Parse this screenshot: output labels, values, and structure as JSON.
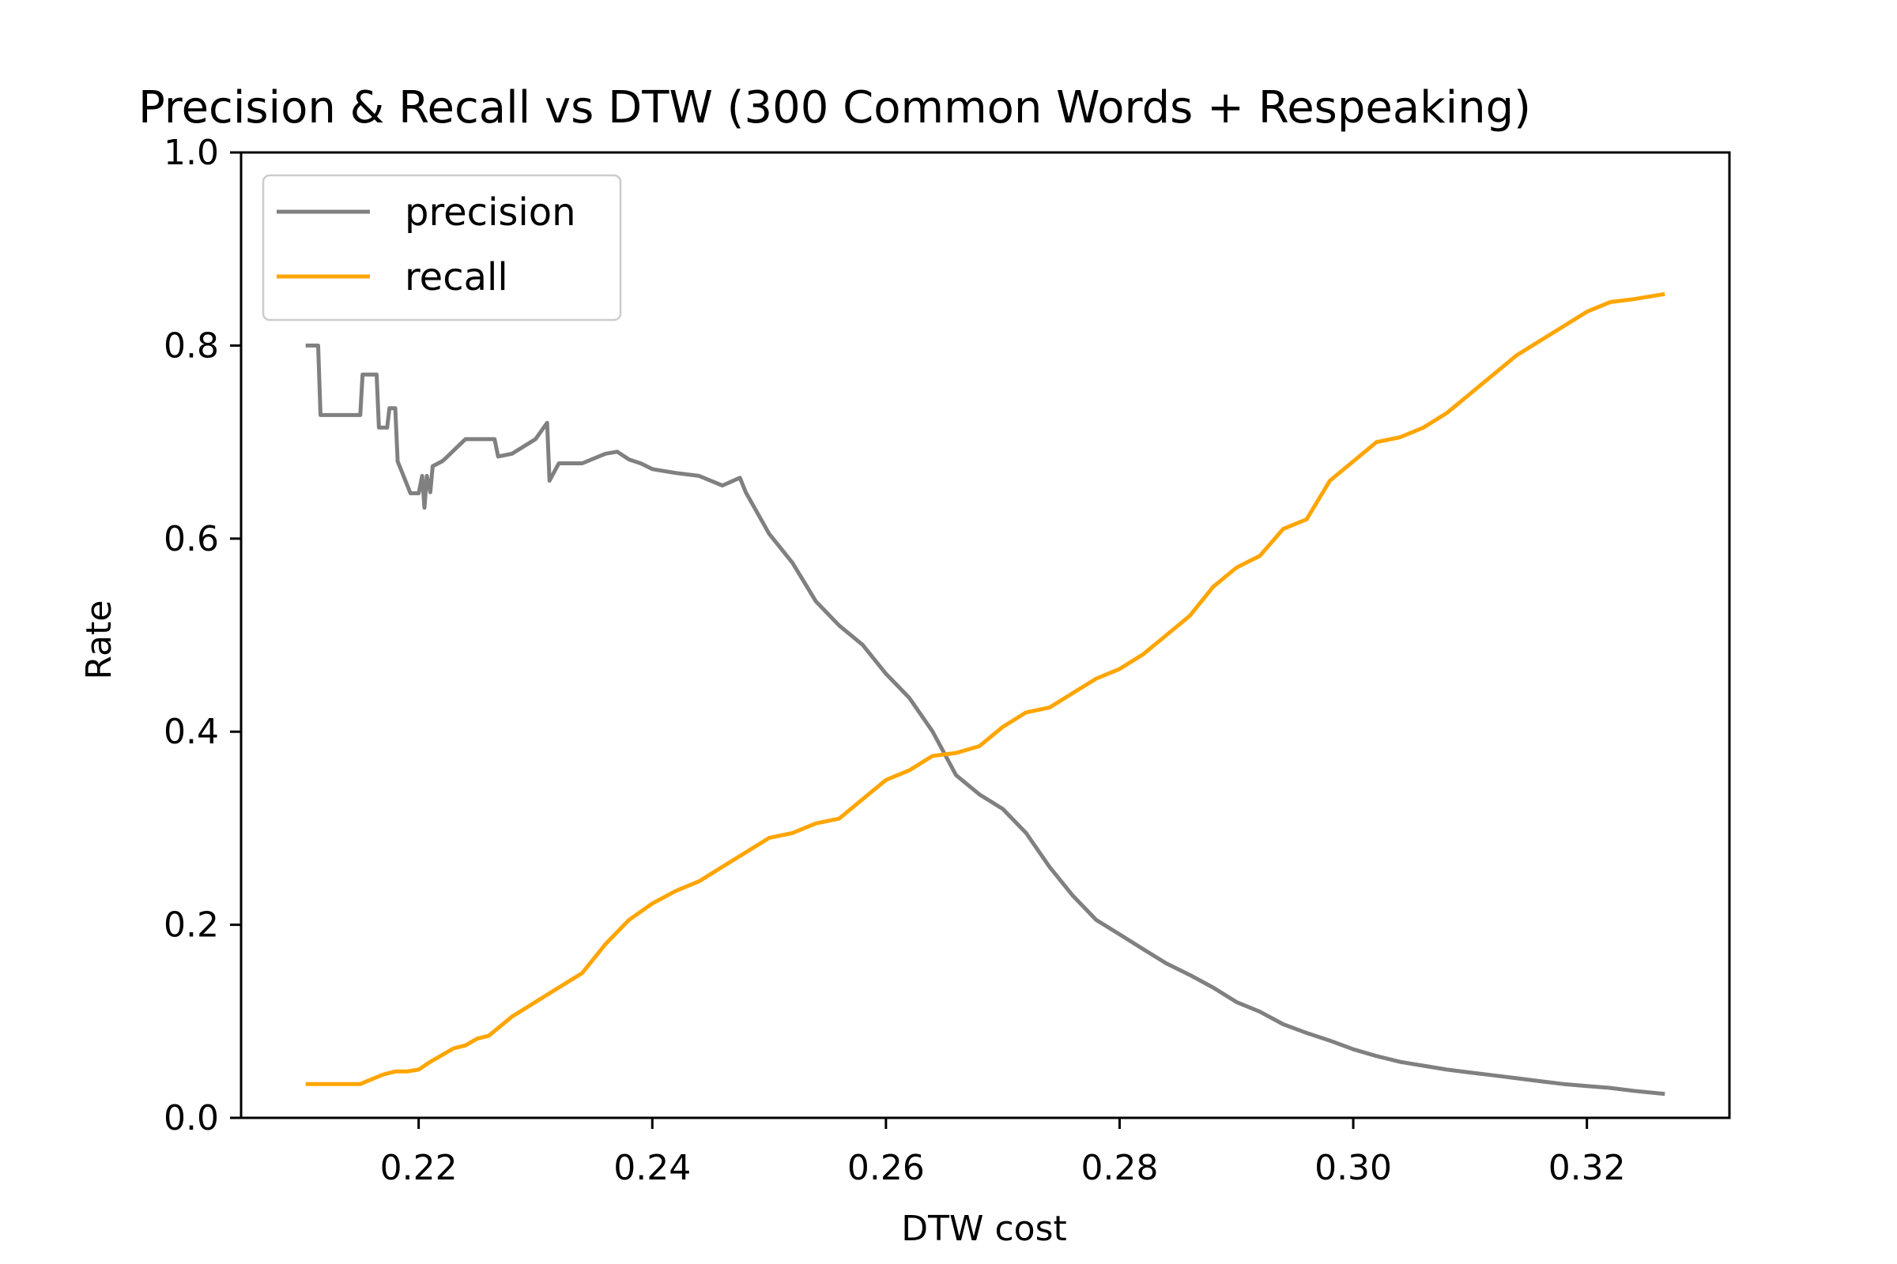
{
  "chart_data": {
    "type": "line",
    "title": "Precision & Recall vs DTW  (300 Common Words + Respeaking)",
    "xlabel": "DTW cost",
    "ylabel": "Rate",
    "xlim": [
      0.2048,
      0.3322
    ],
    "ylim": [
      0.0,
      1.0
    ],
    "xticks": [
      0.22,
      0.24,
      0.26,
      0.28,
      0.3,
      0.32
    ],
    "xtick_labels": [
      "0.22",
      "0.24",
      "0.26",
      "0.28",
      "0.30",
      "0.32"
    ],
    "yticks": [
      0.0,
      0.2,
      0.4,
      0.6,
      0.8,
      1.0
    ],
    "ytick_labels": [
      "0.0",
      "0.2",
      "0.4",
      "0.6",
      "0.8",
      "1.0"
    ],
    "grid": false,
    "legend_position": "top-left",
    "series": [
      {
        "name": "precision",
        "color": "#808080",
        "x": [
          0.2105,
          0.2114,
          0.2116,
          0.215,
          0.2152,
          0.2164,
          0.2166,
          0.2173,
          0.2175,
          0.218,
          0.2182,
          0.2193,
          0.2195,
          0.22,
          0.2203,
          0.2205,
          0.2207,
          0.221,
          0.2212,
          0.222,
          0.2222,
          0.224,
          0.2265,
          0.2268,
          0.228,
          0.23,
          0.231,
          0.2312,
          0.232,
          0.234,
          0.236,
          0.237,
          0.238,
          0.239,
          0.24,
          0.242,
          0.244,
          0.246,
          0.2475,
          0.248,
          0.25,
          0.252,
          0.254,
          0.256,
          0.258,
          0.26,
          0.262,
          0.264,
          0.266,
          0.268,
          0.27,
          0.272,
          0.274,
          0.276,
          0.278,
          0.28,
          0.282,
          0.284,
          0.286,
          0.288,
          0.29,
          0.292,
          0.294,
          0.296,
          0.298,
          0.3,
          0.302,
          0.304,
          0.306,
          0.308,
          0.31,
          0.312,
          0.314,
          0.316,
          0.318,
          0.32,
          0.322,
          0.324,
          0.3265
        ],
        "y": [
          0.8,
          0.8,
          0.728,
          0.728,
          0.77,
          0.77,
          0.715,
          0.715,
          0.735,
          0.735,
          0.68,
          0.647,
          0.647,
          0.647,
          0.665,
          0.632,
          0.665,
          0.648,
          0.675,
          0.68,
          0.682,
          0.703,
          0.703,
          0.685,
          0.688,
          0.703,
          0.72,
          0.66,
          0.678,
          0.678,
          0.688,
          0.69,
          0.682,
          0.678,
          0.672,
          0.668,
          0.665,
          0.655,
          0.663,
          0.648,
          0.605,
          0.575,
          0.535,
          0.51,
          0.49,
          0.46,
          0.435,
          0.4,
          0.355,
          0.335,
          0.32,
          0.295,
          0.26,
          0.23,
          0.205,
          0.19,
          0.175,
          0.16,
          0.148,
          0.135,
          0.12,
          0.11,
          0.097,
          0.088,
          0.08,
          0.071,
          0.064,
          0.058,
          0.054,
          0.05,
          0.047,
          0.044,
          0.041,
          0.038,
          0.035,
          0.033,
          0.031,
          0.028,
          0.025
        ]
      },
      {
        "name": "recall",
        "color": "#ffa500",
        "x": [
          0.2105,
          0.212,
          0.215,
          0.216,
          0.217,
          0.218,
          0.219,
          0.22,
          0.221,
          0.222,
          0.223,
          0.224,
          0.225,
          0.226,
          0.227,
          0.228,
          0.23,
          0.232,
          0.234,
          0.236,
          0.238,
          0.24,
          0.242,
          0.244,
          0.246,
          0.248,
          0.25,
          0.252,
          0.254,
          0.256,
          0.258,
          0.26,
          0.262,
          0.264,
          0.266,
          0.268,
          0.27,
          0.272,
          0.274,
          0.276,
          0.278,
          0.28,
          0.282,
          0.284,
          0.286,
          0.288,
          0.29,
          0.292,
          0.294,
          0.296,
          0.298,
          0.3,
          0.302,
          0.304,
          0.306,
          0.308,
          0.31,
          0.312,
          0.314,
          0.316,
          0.318,
          0.32,
          0.322,
          0.324,
          0.3265
        ],
        "y": [
          0.035,
          0.035,
          0.035,
          0.04,
          0.045,
          0.048,
          0.048,
          0.05,
          0.058,
          0.065,
          0.072,
          0.075,
          0.082,
          0.085,
          0.095,
          0.105,
          0.12,
          0.135,
          0.15,
          0.18,
          0.205,
          0.222,
          0.235,
          0.245,
          0.26,
          0.275,
          0.29,
          0.295,
          0.305,
          0.31,
          0.33,
          0.35,
          0.36,
          0.375,
          0.378,
          0.385,
          0.405,
          0.42,
          0.425,
          0.44,
          0.455,
          0.465,
          0.48,
          0.5,
          0.52,
          0.55,
          0.57,
          0.582,
          0.61,
          0.62,
          0.66,
          0.68,
          0.7,
          0.705,
          0.715,
          0.73,
          0.75,
          0.77,
          0.79,
          0.805,
          0.82,
          0.835,
          0.845,
          0.848,
          0.853
        ]
      }
    ]
  }
}
